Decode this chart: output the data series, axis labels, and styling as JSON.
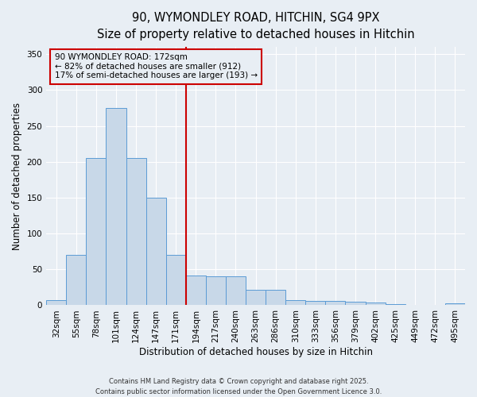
{
  "title_line1": "90, WYMONDLEY ROAD, HITCHIN, SG4 9PX",
  "title_line2": "Size of property relative to detached houses in Hitchin",
  "xlabel": "Distribution of detached houses by size in Hitchin",
  "ylabel": "Number of detached properties",
  "categories": [
    "32sqm",
    "55sqm",
    "78sqm",
    "101sqm",
    "124sqm",
    "147sqm",
    "171sqm",
    "194sqm",
    "217sqm",
    "240sqm",
    "263sqm",
    "286sqm",
    "310sqm",
    "333sqm",
    "356sqm",
    "379sqm",
    "402sqm",
    "425sqm",
    "449sqm",
    "472sqm",
    "495sqm"
  ],
  "values": [
    7,
    70,
    205,
    275,
    205,
    150,
    70,
    42,
    40,
    40,
    22,
    22,
    7,
    6,
    6,
    5,
    4,
    2,
    0,
    0,
    3
  ],
  "bar_color": "#c8d8e8",
  "bar_edge_color": "#5b9bd5",
  "vline_index": 6,
  "vline_color": "#cc0000",
  "annotation_text_line1": "90 WYMONDLEY ROAD: 172sqm",
  "annotation_text_line2": "← 82% of detached houses are smaller (912)",
  "annotation_text_line3": "17% of semi-detached houses are larger (193) →",
  "annotation_box_color": "#cc0000",
  "ylim": [
    0,
    360
  ],
  "yticks": [
    0,
    50,
    100,
    150,
    200,
    250,
    300,
    350
  ],
  "background_color": "#e8eef4",
  "footer_line1": "Contains HM Land Registry data © Crown copyright and database right 2025.",
  "footer_line2": "Contains public sector information licensed under the Open Government Licence 3.0.",
  "title_fontsize": 10.5,
  "axis_label_fontsize": 8.5,
  "tick_fontsize": 7.5,
  "annotation_fontsize": 7.5
}
